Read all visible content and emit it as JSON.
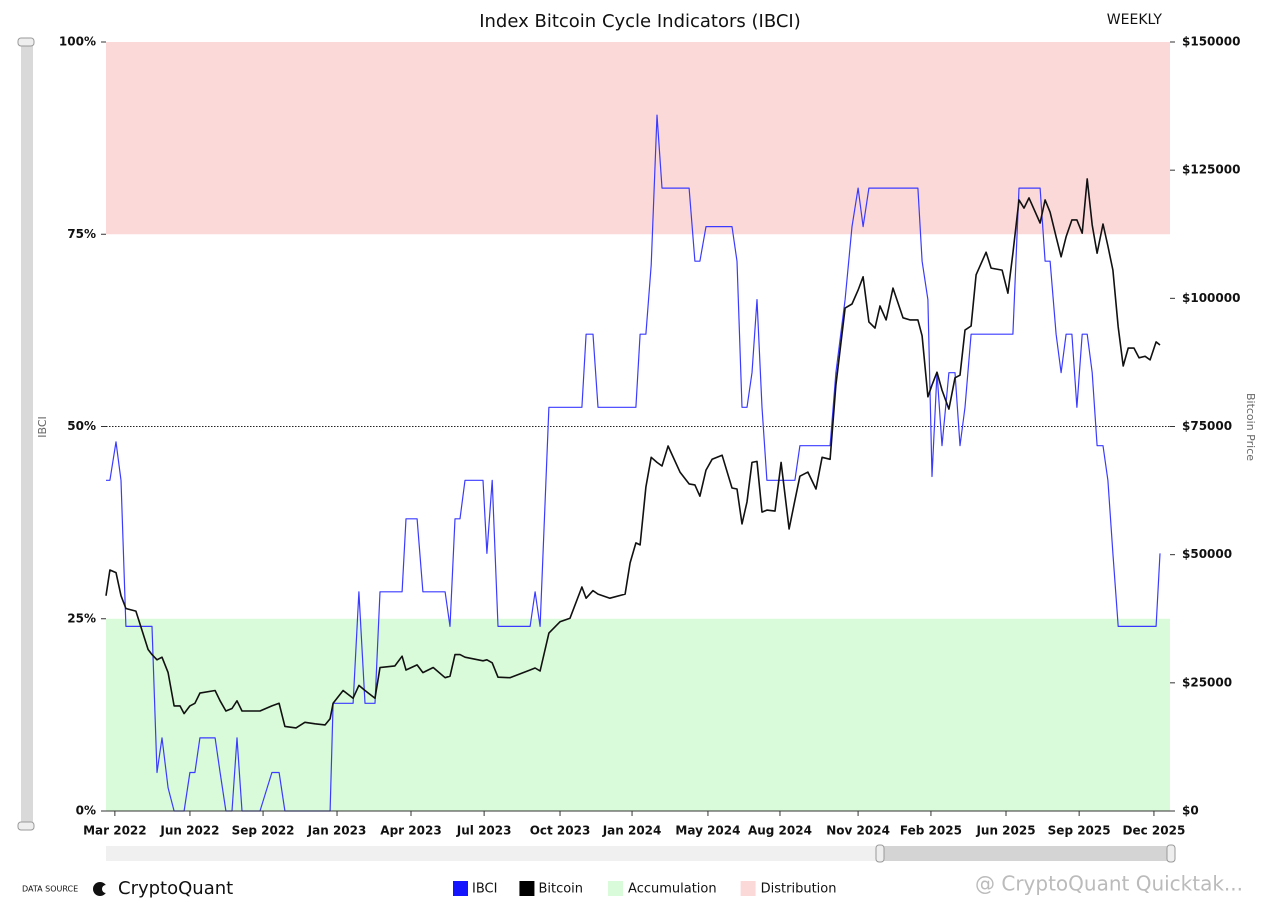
{
  "chart_data": {
    "type": "line",
    "title": "Index Bitcoin Cycle Indicators (IBCI)",
    "frequency": "WEEKLY",
    "y_label": "IBCI",
    "y2_label": "Bitcoin Price",
    "x": [
      2022.135,
      2022.149,
      2022.171,
      2022.189,
      2022.207,
      2022.243,
      2022.287,
      2022.301,
      2022.319,
      2022.337,
      2022.359,
      2022.381,
      2022.402,
      2022.417,
      2022.438,
      2022.456,
      2022.474,
      2022.529,
      2022.547,
      2022.568,
      2022.59,
      2022.608,
      2022.626,
      2022.691,
      2022.734,
      2022.76,
      2022.781,
      2022.821,
      2022.853,
      2022.89,
      2022.926,
      2022.944,
      2022.955,
      2022.991,
      2023.027,
      2023.048,
      2023.07,
      2023.106,
      2023.124,
      2023.178,
      2023.204,
      2023.218,
      2023.258,
      2023.279,
      2023.316,
      2023.359,
      2023.377,
      2023.395,
      2023.413,
      2023.431,
      2023.496,
      2023.51,
      2023.529,
      2023.55,
      2023.593,
      2023.666,
      2023.684,
      2023.702,
      2023.734,
      2023.774,
      2023.81,
      2023.853,
      2023.868,
      2023.893,
      2023.911,
      2023.954,
      2024.009,
      2024.027,
      2024.048,
      2024.063,
      2024.084,
      2024.103,
      2024.124,
      2024.142,
      2024.164,
      2024.207,
      2024.24,
      2024.261,
      2024.279,
      2024.301,
      2024.323,
      2024.359,
      2024.395,
      2024.413,
      2024.431,
      2024.449,
      2024.467,
      2024.485,
      2024.503,
      2024.521,
      2024.55,
      2024.572,
      2024.601,
      2024.622,
      2024.64,
      2024.669,
      2024.698,
      2024.72,
      2024.749,
      2024.77,
      2024.803,
      2024.828,
      2024.85,
      2024.868,
      2024.889,
      2024.911,
      2024.929,
      2024.951,
      2024.976,
      2025.012,
      2025.037,
      2025.066,
      2025.081,
      2025.102,
      2025.117,
      2025.135,
      2025.153,
      2025.178,
      2025.2,
      2025.218,
      2025.236,
      2025.258,
      2025.276,
      2025.312,
      2025.33,
      2025.37,
      2025.391,
      2025.409,
      2025.431,
      2025.449,
      2025.467,
      2025.507,
      2025.525,
      2025.543,
      2025.565,
      2025.583,
      2025.601,
      2025.622,
      2025.64,
      2025.659,
      2025.677,
      2025.695,
      2025.713,
      2025.734,
      2025.752,
      2025.77,
      2025.789,
      2025.807,
      2025.825,
      2025.846,
      2025.864,
      2025.886,
      2025.904,
      2025.926,
      2025.94
    ],
    "series": [
      {
        "name": "IBCI",
        "color": "#3b3bff",
        "legend_color": "#1414ff",
        "axis": "y",
        "values": [
          43,
          43,
          48,
          43,
          24,
          24,
          24,
          24,
          5,
          9.5,
          3,
          0,
          0,
          0,
          5,
          5,
          9.5,
          9.5,
          5,
          0,
          0,
          9.5,
          0,
          0,
          5,
          5,
          0,
          0,
          0,
          0,
          0,
          0,
          14,
          14,
          14,
          28.5,
          14,
          14,
          28.5,
          28.5,
          28.5,
          38,
          38,
          28.5,
          28.5,
          28.5,
          24,
          38,
          38,
          43,
          43,
          33.5,
          43,
          24,
          24,
          24,
          28.5,
          24,
          52.5,
          52.5,
          52.5,
          52.5,
          62,
          62,
          52.5,
          52.5,
          52.5,
          52.5,
          52.5,
          62,
          62,
          71,
          90.5,
          81,
          81,
          81,
          81,
          71.5,
          71.5,
          76,
          76,
          76,
          76,
          71.5,
          52.5,
          52.5,
          57,
          66.5,
          52.5,
          43,
          43,
          43,
          43,
          43,
          47.5,
          47.5,
          47.5,
          47.5,
          47.5,
          57,
          66.5,
          76,
          81,
          76,
          81,
          81,
          81,
          81,
          81,
          81,
          81,
          81,
          71.5,
          66.5,
          43.5,
          57,
          47.5,
          57,
          57,
          47.5,
          52.5,
          62,
          62,
          62,
          62,
          62,
          62,
          62,
          81,
          81,
          81,
          81,
          71.5,
          71.5,
          62,
          57,
          62,
          62,
          52.5,
          62,
          62,
          57,
          47.5,
          47.5,
          43,
          33.5,
          24,
          24,
          24,
          24,
          24,
          24,
          24,
          24,
          33.5
        ]
      },
      {
        "name": "Bitcoin",
        "color": "#111111",
        "legend_color": "#000000",
        "axis": "y2",
        "values": [
          42000,
          47000,
          46500,
          42000,
          39500,
          39000,
          31500,
          30500,
          29500,
          30000,
          27000,
          20500,
          20500,
          19000,
          20500,
          21000,
          23000,
          23500,
          21500,
          19500,
          20000,
          21500,
          19500,
          19500,
          20500,
          21000,
          16500,
          16200,
          17300,
          17000,
          16800,
          18000,
          21000,
          23500,
          22000,
          24500,
          23500,
          22000,
          28000,
          28300,
          30200,
          27500,
          28500,
          27000,
          28000,
          26000,
          26300,
          30500,
          30500,
          30000,
          29300,
          29500,
          28900,
          26100,
          26000,
          27500,
          27900,
          27300,
          34700,
          36900,
          37600,
          43700,
          41500,
          43000,
          42300,
          41500,
          42300,
          48400,
          52300,
          51900,
          63200,
          69000,
          68000,
          67300,
          71200,
          66100,
          63800,
          63600,
          61400,
          66500,
          68600,
          69400,
          63000,
          62800,
          56000,
          60300,
          68000,
          68200,
          58300,
          58700,
          58500,
          68000,
          55000,
          60600,
          65300,
          66100,
          62800,
          69000,
          68600,
          83100,
          98100,
          98900,
          101600,
          104200,
          95400,
          94200,
          98500,
          95800,
          102000,
          96200,
          95800,
          95800,
          92700,
          80800,
          83100,
          85600,
          82100,
          78400,
          84500,
          85000,
          93800,
          94600,
          104600,
          109000,
          105900,
          105500,
          101000,
          108800,
          119200,
          117600,
          119600,
          114700,
          119200,
          116800,
          112000,
          108100,
          112000,
          115300,
          115300,
          112700,
          123300,
          114300,
          108800,
          114500,
          110200,
          105500,
          94400,
          86800,
          90300,
          90300,
          88400,
          88700,
          88000,
          91500,
          90900
        ]
      }
    ],
    "zones": [
      {
        "name": "Accumulation",
        "color": "#d9fbd9",
        "from": 0,
        "to": 25
      },
      {
        "name": "Distribution",
        "color": "#fcd9d9",
        "from": 75,
        "to": 100
      }
    ],
    "reference_line": 50,
    "xlim": [
      2022.135,
      2025.976
    ],
    "xticks": [
      {
        "value": 2022.167,
        "label": "Mar 2022"
      },
      {
        "value": 2022.438,
        "label": "Jun 2022"
      },
      {
        "value": 2022.702,
        "label": "Sep 2022"
      },
      {
        "value": 2022.969,
        "label": "Jan 2023"
      },
      {
        "value": 2023.236,
        "label": "Apr 2023"
      },
      {
        "value": 2023.5,
        "label": "Jul 2023"
      },
      {
        "value": 2023.774,
        "label": "Oct 2023"
      },
      {
        "value": 2024.034,
        "label": "Jan 2024"
      },
      {
        "value": 2024.308,
        "label": "May 2024"
      },
      {
        "value": 2024.568,
        "label": "Aug 2024"
      },
      {
        "value": 2024.85,
        "label": "Nov 2024"
      },
      {
        "value": 2025.113,
        "label": "Feb 2025"
      },
      {
        "value": 2025.384,
        "label": "Jun 2025"
      },
      {
        "value": 2025.648,
        "label": "Sep 2025"
      },
      {
        "value": 2025.918,
        "label": "Dec 2025"
      }
    ],
    "ylim": [
      0,
      100
    ],
    "yticks": [
      {
        "value": 0,
        "label": "0%"
      },
      {
        "value": 25,
        "label": "25%"
      },
      {
        "value": 50,
        "label": "50%"
      },
      {
        "value": 75,
        "label": "75%"
      },
      {
        "value": 100,
        "label": "100%"
      }
    ],
    "y2lim": [
      0,
      150000
    ],
    "y2ticks": [
      {
        "value": 0,
        "label": "$0"
      },
      {
        "value": 25000,
        "label": "$25000"
      },
      {
        "value": 50000,
        "label": "$50000"
      },
      {
        "value": 75000,
        "label": "$75000"
      },
      {
        "value": 100000,
        "label": "$100000"
      },
      {
        "value": 125000,
        "label": "$125000"
      },
      {
        "value": 150000,
        "label": "$150000"
      }
    ],
    "source_prefix": "DATA SOURCE",
    "source": "CryptoQuant",
    "watermark": "@ CryptoQuant Quicktak..."
  }
}
